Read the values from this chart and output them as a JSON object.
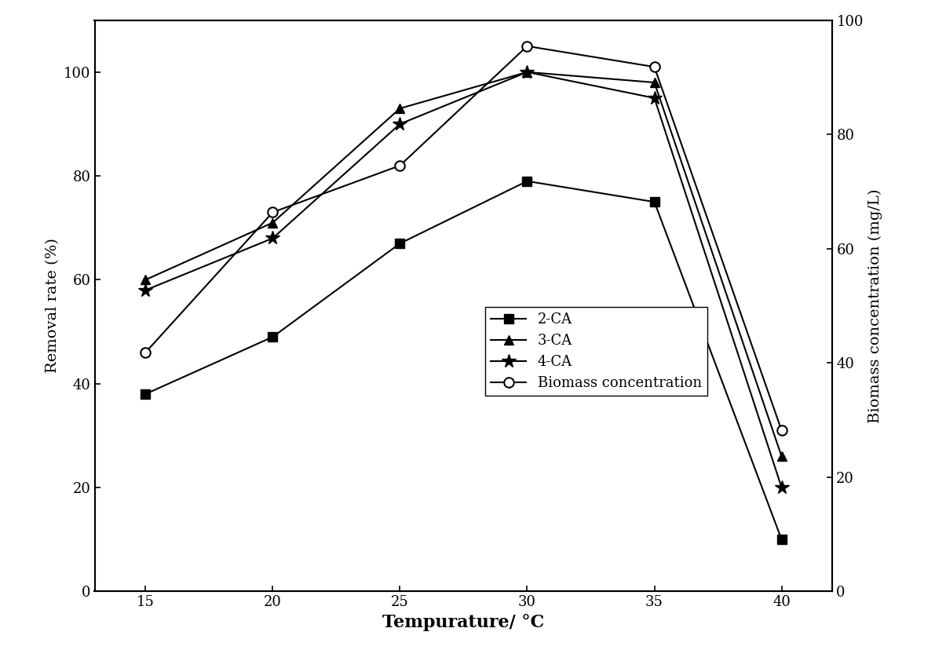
{
  "temperature": [
    15,
    20,
    25,
    30,
    35,
    40
  ],
  "ca2": [
    38,
    49,
    67,
    79,
    75,
    10
  ],
  "ca3": [
    60,
    71,
    93,
    100,
    98,
    26
  ],
  "ca4": [
    58,
    68,
    90,
    100,
    95,
    20
  ],
  "biomass": [
    46,
    73,
    82,
    105,
    101,
    31
  ],
  "ylabel_left": "Removal rate (%)",
  "ylabel_right": "Biomass concentration (mg/L)",
  "xlabel": "Tempurature/ °C",
  "ylim_left": [
    0,
    110
  ],
  "ylim_right": [
    0,
    100
  ],
  "yticks_left": [
    0,
    20,
    40,
    60,
    80,
    100
  ],
  "yticks_right": [
    0,
    20,
    40,
    60,
    80,
    100
  ],
  "legend_labels": [
    "2-CA",
    "3-CA",
    "4-CA",
    "Biomass concentration"
  ],
  "line_color": "#000000",
  "bg_color": "#ffffff",
  "figsize": [
    12.05,
    8.56
  ],
  "dpi": 100
}
